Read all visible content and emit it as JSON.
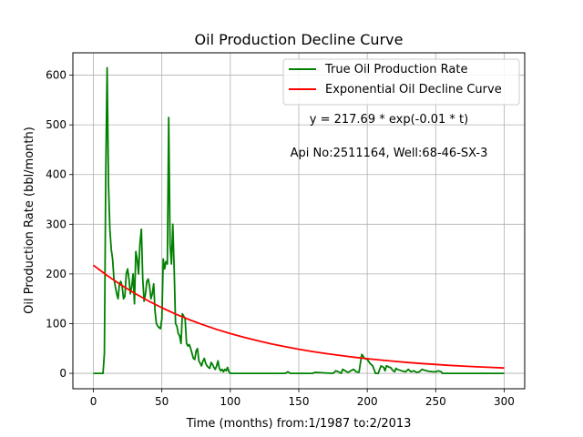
{
  "chart_data": {
    "type": "line",
    "title": "Oil Production Decline Curve",
    "xlabel": "Time (months) from:1/1987 to:2/2013",
    "ylabel": "Oil Production Rate (bbl/month)",
    "xlim": [
      -15,
      315
    ],
    "ylim": [
      -31,
      645
    ],
    "xticks": [
      0,
      50,
      100,
      150,
      200,
      250,
      300
    ],
    "yticks": [
      0,
      100,
      200,
      300,
      400,
      500,
      600
    ],
    "grid": true,
    "legend_position": "top-right",
    "annotations": [
      "y = 217.69 * exp(-0.01 * t)",
      "Api No:2511164, Well:68-46-SX-3"
    ],
    "series": [
      {
        "name": "True Oil Production Rate",
        "color": "#008000",
        "x": [
          0,
          6,
          7,
          8,
          9,
          10,
          11,
          12,
          13,
          14,
          15,
          16,
          17,
          18,
          19,
          20,
          21,
          22,
          23,
          24,
          25,
          26,
          27,
          28,
          29,
          30,
          31,
          32,
          33,
          34,
          35,
          36,
          37,
          38,
          39,
          40,
          41,
          42,
          43,
          44,
          45,
          46,
          47,
          48,
          49,
          50,
          51,
          52,
          53,
          54,
          55,
          56,
          57,
          58,
          59,
          60,
          61,
          62,
          63,
          64,
          65,
          66,
          67,
          68,
          69,
          70,
          71,
          72,
          73,
          74,
          75,
          76,
          77,
          78,
          79,
          80,
          81,
          82,
          83,
          84,
          85,
          86,
          87,
          88,
          89,
          90,
          91,
          92,
          93,
          94,
          95,
          96,
          97,
          98,
          99,
          100,
          102,
          104,
          140,
          142,
          144,
          160,
          162,
          175,
          177,
          179,
          181,
          182,
          184,
          185,
          186,
          188,
          190,
          192,
          194,
          196,
          197,
          198,
          200,
          202,
          204,
          206,
          207,
          208,
          210,
          212,
          213,
          214,
          215,
          216,
          217,
          218,
          219,
          220,
          221,
          222,
          225,
          228,
          230,
          232,
          234,
          236,
          238,
          240,
          242,
          245,
          248,
          250,
          252,
          254,
          255,
          256,
          300
        ],
        "values": [
          0,
          0,
          0,
          40,
          400,
          615,
          380,
          290,
          250,
          230,
          190,
          175,
          160,
          150,
          180,
          185,
          175,
          150,
          155,
          200,
          210,
          190,
          160,
          175,
          200,
          140,
          245,
          230,
          200,
          260,
          290,
          190,
          145,
          160,
          185,
          190,
          175,
          150,
          160,
          180,
          125,
          100,
          95,
          92,
          90,
          110,
          230,
          210,
          225,
          220,
          515,
          260,
          220,
          300,
          210,
          100,
          95,
          80,
          75,
          60,
          120,
          115,
          110,
          60,
          55,
          58,
          50,
          40,
          30,
          28,
          45,
          50,
          25,
          20,
          15,
          25,
          30,
          20,
          15,
          12,
          10,
          22,
          18,
          12,
          8,
          15,
          25,
          10,
          5,
          8,
          3,
          8,
          5,
          12,
          3,
          0,
          0,
          0,
          0,
          3,
          0,
          0,
          2,
          0,
          5,
          3,
          0,
          8,
          5,
          3,
          2,
          5,
          8,
          3,
          2,
          38,
          35,
          30,
          28,
          20,
          15,
          0,
          0,
          0,
          15,
          12,
          5,
          15,
          14,
          12,
          12,
          8,
          5,
          3,
          10,
          8,
          5,
          3,
          8,
          3,
          5,
          2,
          3,
          8,
          6,
          4,
          3,
          3,
          5,
          3,
          0,
          0,
          0
        ]
      },
      {
        "name": "Exponential Oil Decline Curve",
        "color": "#ff0000",
        "equation": "y = 217.69 * exp(-0.01 * t)",
        "x": [
          0,
          10,
          20,
          30,
          40,
          50,
          60,
          70,
          80,
          90,
          100,
          110,
          120,
          130,
          140,
          150,
          160,
          170,
          180,
          190,
          200,
          210,
          220,
          230,
          240,
          250,
          260,
          270,
          280,
          290,
          300
        ],
        "values": [
          217.69,
          196.97,
          178.23,
          161.27,
          145.92,
          132.04,
          119.47,
          108.1,
          97.81,
          88.51,
          80.08,
          72.46,
          65.57,
          59.33,
          53.68,
          48.57,
          43.95,
          39.77,
          35.98,
          32.56,
          29.46,
          26.66,
          24.12,
          21.82,
          19.75,
          17.87,
          16.17,
          14.63,
          13.24,
          11.98,
          10.84
        ]
      }
    ]
  }
}
